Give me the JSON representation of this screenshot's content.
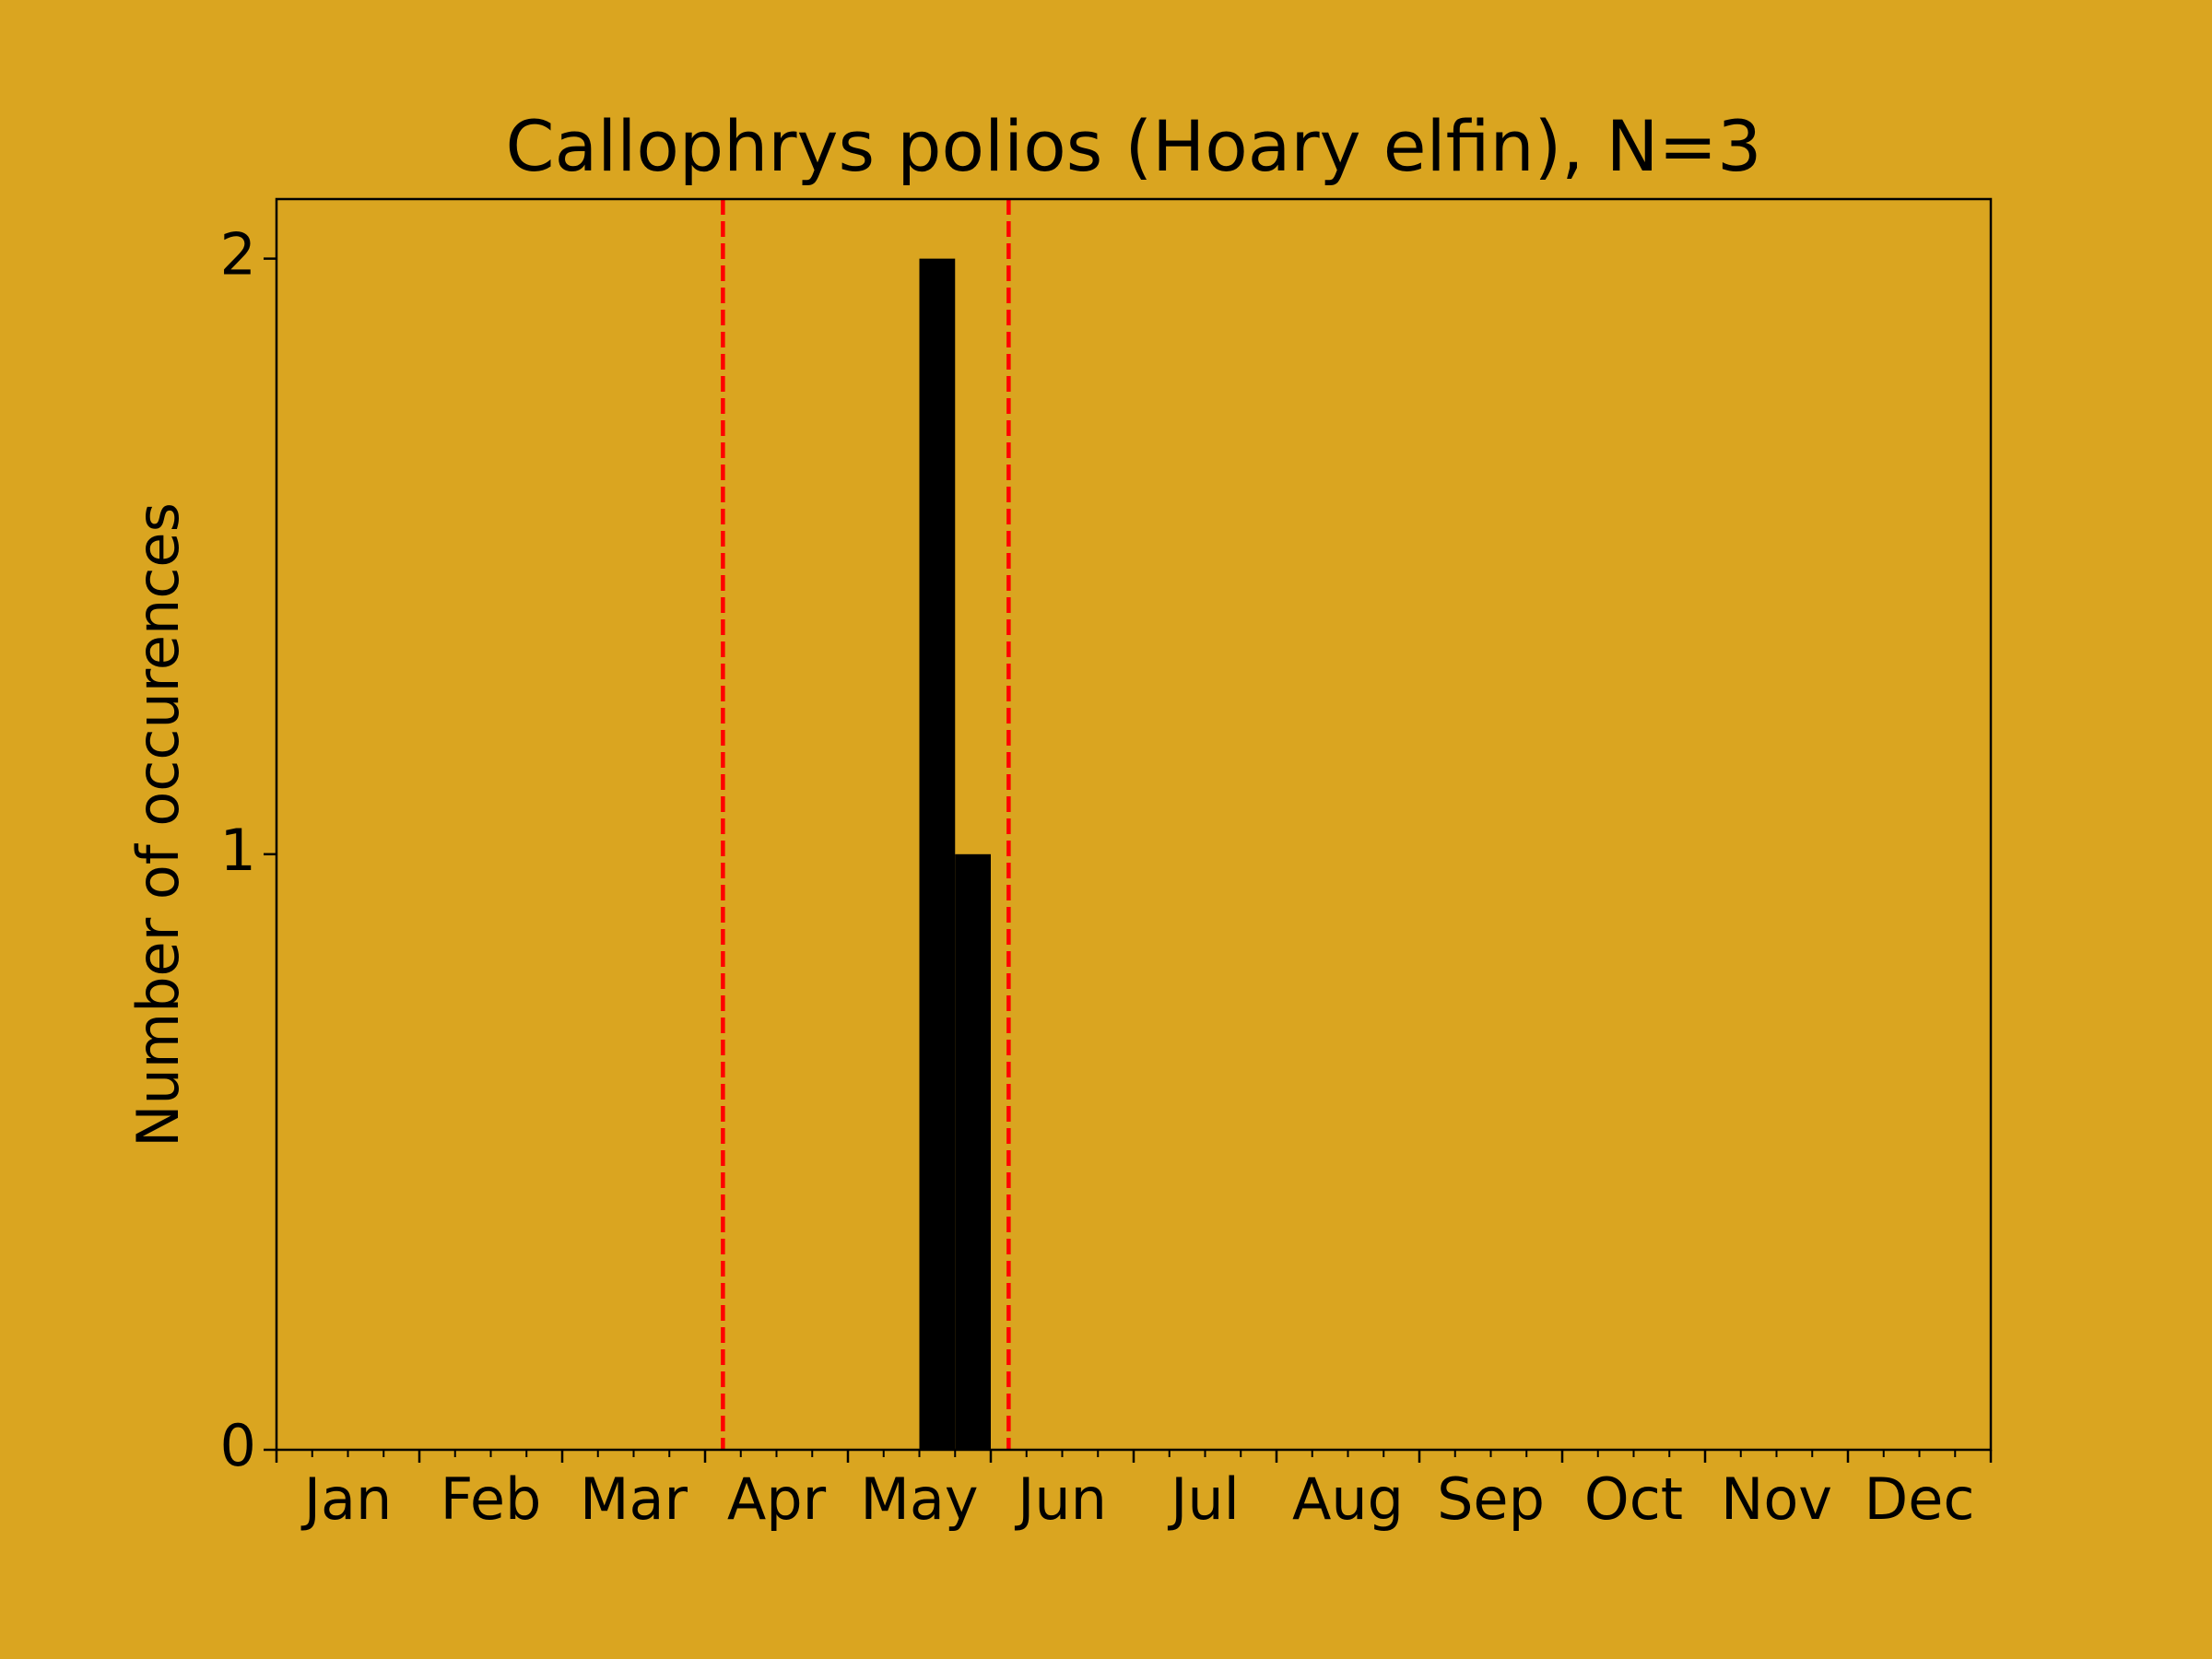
{
  "chart_data": {
    "type": "histogram",
    "title": "Callophrys polios (Hoary elfin), N=3",
    "ylabel": "Number of occurences",
    "background": "#daa520",
    "color": "#000000",
    "bins": [
      0,
      1,
      2,
      3,
      4,
      5,
      6,
      7,
      8,
      9,
      10,
      11,
      12,
      13,
      14,
      15,
      16,
      17,
      18,
      19,
      20,
      21,
      22,
      23,
      24,
      25,
      26,
      27,
      28,
      29,
      30,
      31,
      32,
      33,
      34,
      35,
      36,
      37,
      38,
      39,
      40,
      41,
      42,
      43,
      44,
      45,
      46,
      47,
      48
    ],
    "values": [
      0,
      0,
      0,
      0,
      0,
      0,
      0,
      0,
      0,
      0,
      0,
      0,
      0,
      0,
      0,
      0,
      0,
      0,
      2,
      1,
      0,
      0,
      0,
      0,
      0,
      0,
      0,
      0,
      0,
      0,
      0,
      0,
      0,
      0,
      0,
      0,
      0,
      0,
      0,
      0,
      0,
      0,
      0,
      0,
      0,
      0,
      0,
      0,
      0
    ],
    "xlim": [
      0,
      48
    ],
    "xticks": [
      {
        "value": 2,
        "label": "Jan"
      },
      {
        "value": 6,
        "label": "Feb"
      },
      {
        "value": 10,
        "label": "Mar"
      },
      {
        "value": 14,
        "label": "Apr"
      },
      {
        "value": 18,
        "label": "May"
      },
      {
        "value": 22,
        "label": "Jun"
      },
      {
        "value": 26,
        "label": "Jul"
      },
      {
        "value": 30,
        "label": "Aug"
      },
      {
        "value": 34,
        "label": "Sep"
      },
      {
        "value": 38,
        "label": "Oct"
      },
      {
        "value": 42,
        "label": "Nov"
      },
      {
        "value": 46,
        "label": "Dec"
      }
    ],
    "ylim": [
      0,
      2.1
    ],
    "yticks": [
      0,
      1,
      2
    ],
    "vlines": [
      {
        "x": 12.5,
        "color": "#ff0000"
      },
      {
        "x": 20.5,
        "color": "#ff0000"
      }
    ]
  }
}
